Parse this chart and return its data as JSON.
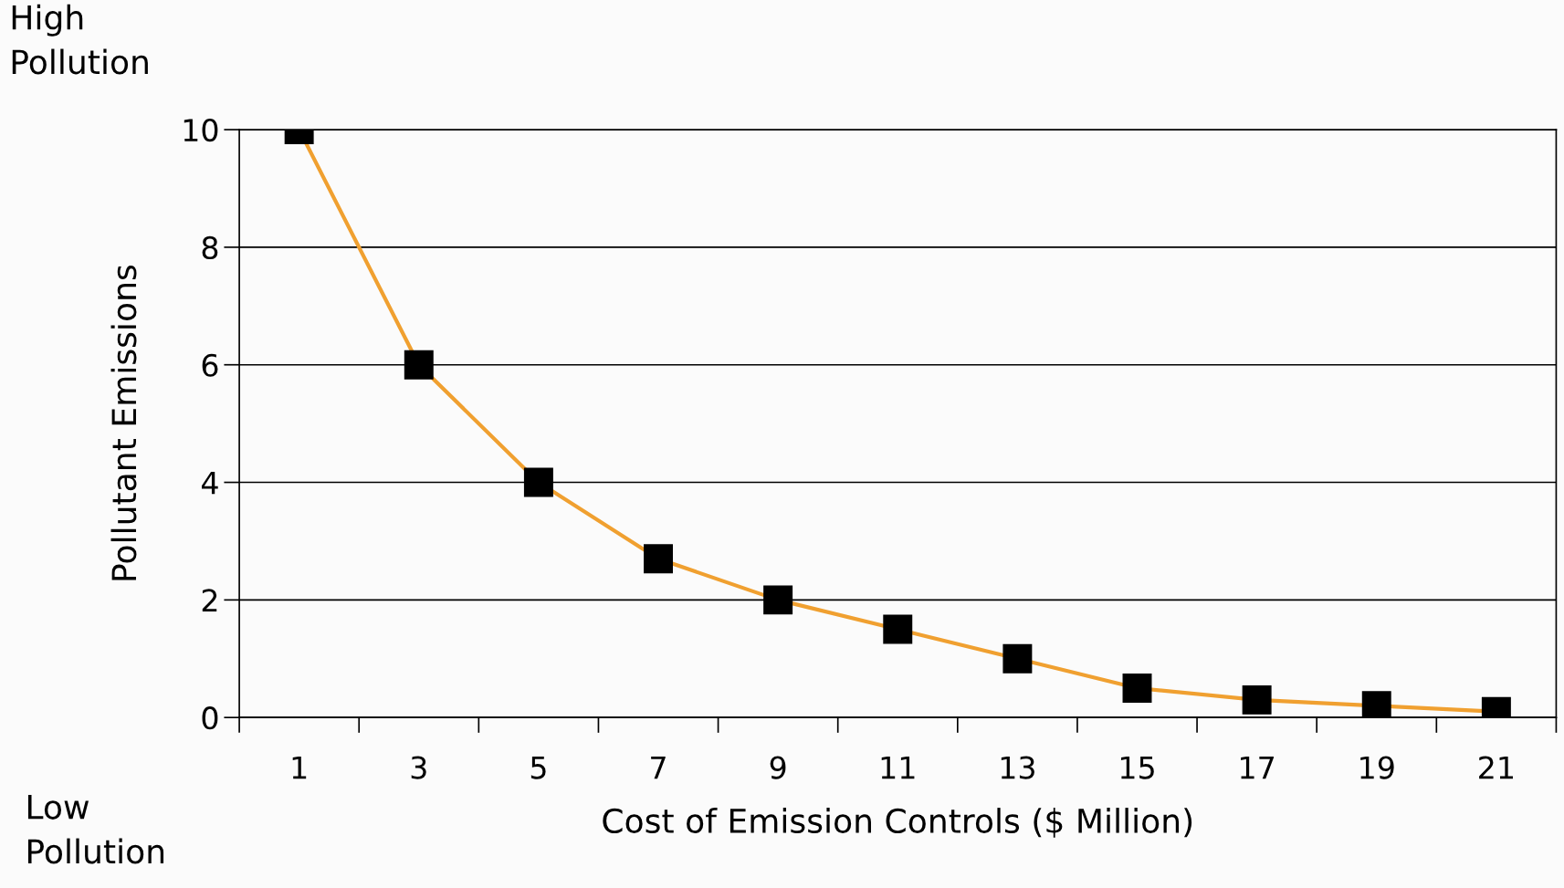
{
  "chart_data": {
    "type": "line",
    "xlabel": "Cost of Emission Controls ($ Million)",
    "ylabel": "Pollutant Emissions",
    "categories": [
      "1",
      "3",
      "5",
      "7",
      "9",
      "11",
      "13",
      "15",
      "17",
      "19",
      "21"
    ],
    "series": [
      {
        "color": "#f0a030",
        "values": [
          10,
          6,
          4,
          2.7,
          2,
          1.5,
          1,
          0.5,
          0.3,
          0.2,
          0.1
        ]
      }
    ],
    "ylim": [
      0,
      10
    ],
    "yticks": [
      0,
      2,
      4,
      6,
      8,
      10
    ],
    "grid": "y",
    "marker": "square",
    "line_style": "solid",
    "annotations": [
      "High\nPollution",
      "Low\nPollution"
    ]
  }
}
